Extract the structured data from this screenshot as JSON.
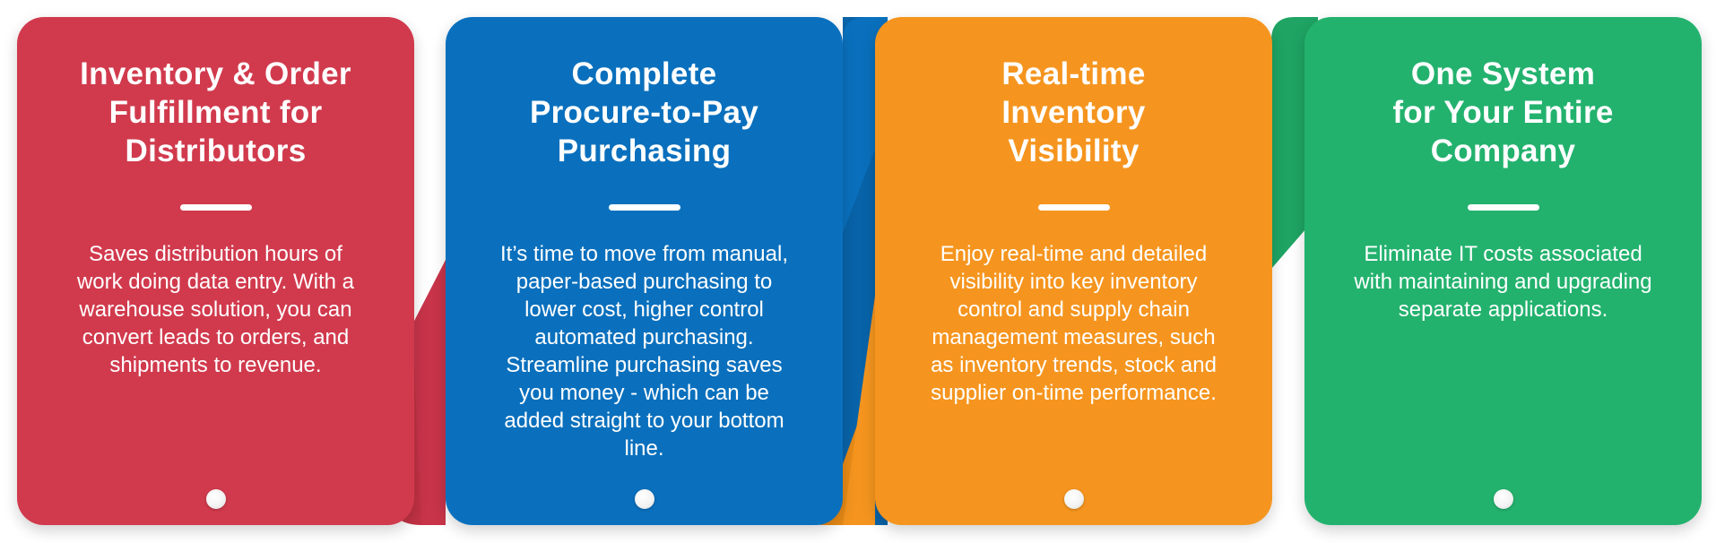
{
  "colors": {
    "red": "#d13a4d",
    "red_dark": "#c23244",
    "blue": "#0a70bd",
    "blue_dark": "#0863a8",
    "orange": "#f5951f",
    "orange_dark": "#e88a16",
    "green": "#23b26e",
    "green_dark": "#1fa464"
  },
  "cards": [
    {
      "title": "Inventory & Order\nFulfillment for\nDistributors",
      "description": "Saves distribution hours of work doing data entry. With a warehouse solution, you can convert leads to orders, and shipments to revenue."
    },
    {
      "title": "Complete\nProcure-to-Pay\nPurchasing",
      "description": "It’s time to move from manual, paper-based purchasing to lower cost, higher control automated purchasing. Streamline purchasing saves you money - which can be added straight to your bottom line."
    },
    {
      "title": "Real-time\nInventory\nVisibility",
      "description": "Enjoy real-time and detailed visibility into key inventory control and supply chain management measures, such as inventory trends, stock and supplier on-time performance."
    },
    {
      "title": "One System\nfor Your Entire\nCompany",
      "description": "Eliminate IT costs associated with maintaining and upgrading separate applications."
    }
  ]
}
